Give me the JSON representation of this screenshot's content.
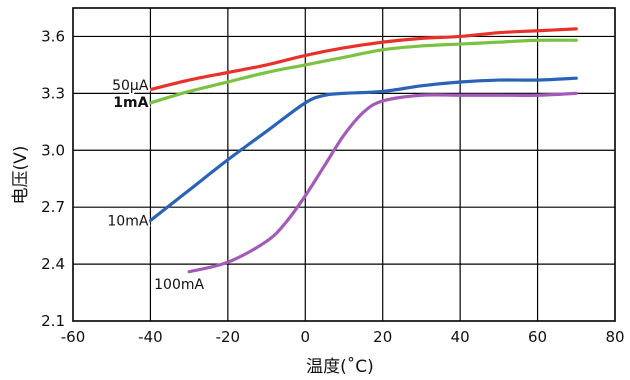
{
  "chart_data": {
    "type": "line",
    "title": "",
    "xlabel": "温度(˚C)",
    "ylabel": "电压(V)",
    "xlim": [
      -60,
      80
    ],
    "ylim": [
      2.1,
      3.75
    ],
    "x_ticks": [
      -60,
      -40,
      -20,
      0,
      20,
      40,
      60,
      80
    ],
    "x_tick_labels": [
      "-60",
      "-40",
      "-20",
      "0",
      "20",
      "40",
      "60",
      "80"
    ],
    "y_ticks": [
      2.1,
      2.4,
      2.7,
      3.0,
      3.3,
      3.6
    ],
    "y_tick_labels": [
      "2.1",
      "2.4",
      "2.7",
      "3.0",
      "3.3",
      "3.6"
    ],
    "grid": true,
    "series": [
      {
        "name": "50µA",
        "color": "#e8312a",
        "points": [
          [
            -40,
            3.32
          ],
          [
            -30,
            3.37
          ],
          [
            -20,
            3.41
          ],
          [
            -10,
            3.45
          ],
          [
            0,
            3.5
          ],
          [
            10,
            3.54
          ],
          [
            20,
            3.57
          ],
          [
            30,
            3.59
          ],
          [
            40,
            3.6
          ],
          [
            50,
            3.62
          ],
          [
            60,
            3.63
          ],
          [
            70,
            3.64
          ]
        ]
      },
      {
        "name": "1mA",
        "color": "#7cc242",
        "points": [
          [
            -40,
            3.25
          ],
          [
            -30,
            3.31
          ],
          [
            -20,
            3.36
          ],
          [
            -10,
            3.41
          ],
          [
            0,
            3.45
          ],
          [
            10,
            3.49
          ],
          [
            20,
            3.53
          ],
          [
            30,
            3.55
          ],
          [
            40,
            3.56
          ],
          [
            50,
            3.57
          ],
          [
            60,
            3.58
          ],
          [
            70,
            3.58
          ]
        ]
      },
      {
        "name": "10mA",
        "color": "#2a62b8",
        "points": [
          [
            -40,
            2.63
          ],
          [
            -30,
            2.79
          ],
          [
            -20,
            2.95
          ],
          [
            -10,
            3.1
          ],
          [
            0,
            3.25
          ],
          [
            5,
            3.29
          ],
          [
            10,
            3.3
          ],
          [
            20,
            3.31
          ],
          [
            30,
            3.34
          ],
          [
            40,
            3.36
          ],
          [
            50,
            3.37
          ],
          [
            60,
            3.37
          ],
          [
            70,
            3.38
          ]
        ]
      },
      {
        "name": "100mA",
        "color": "#a25cb8",
        "points": [
          [
            -30,
            2.36
          ],
          [
            -20,
            2.41
          ],
          [
            -10,
            2.52
          ],
          [
            -5,
            2.62
          ],
          [
            0,
            2.76
          ],
          [
            5,
            2.92
          ],
          [
            10,
            3.08
          ],
          [
            15,
            3.2
          ],
          [
            20,
            3.26
          ],
          [
            30,
            3.29
          ],
          [
            40,
            3.29
          ],
          [
            50,
            3.29
          ],
          [
            60,
            3.29
          ],
          [
            70,
            3.3
          ]
        ]
      }
    ],
    "series_labels": [
      {
        "text": "50µA",
        "x": -40,
        "y": 3.345,
        "bold": false
      },
      {
        "text": "1mA",
        "x": -40,
        "y": 3.255,
        "bold": true
      },
      {
        "text": "10mA",
        "x": -40,
        "y": 2.63,
        "bold": false
      },
      {
        "text": "100mA",
        "x": -30,
        "y": 2.31,
        "bold": false
      }
    ]
  }
}
